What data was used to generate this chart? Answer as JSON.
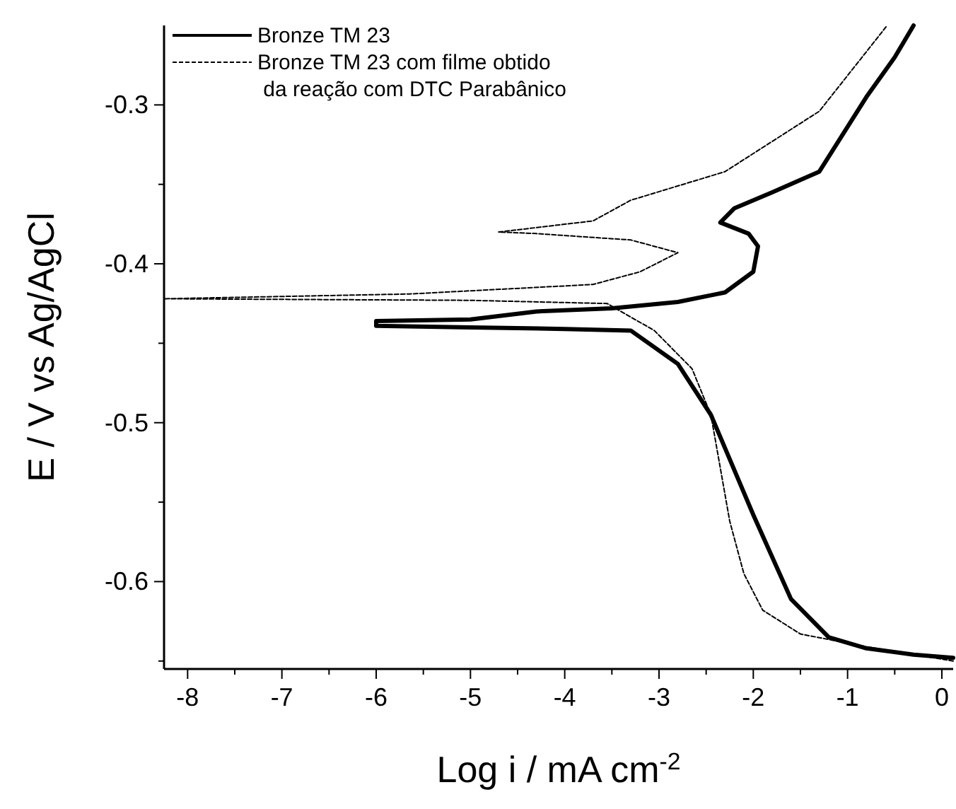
{
  "chart_data": {
    "type": "line",
    "xlabel": "Log i / mA cm$^{-2}$",
    "ylabel": "E / V  vs  Ag/AgCl",
    "xlim": [
      -8.25,
      0.12
    ],
    "ylim": [
      -0.655,
      -0.25
    ],
    "xticks": [
      -8,
      {
        "value": -7.5,
        "label": null
      },
      -7,
      {
        "value": -6.5,
        "label": null
      },
      -6,
      {
        "value": -5.5,
        "label": null
      },
      -5,
      {
        "value": -4.5,
        "label": null
      },
      -4,
      {
        "value": -3.5,
        "label": null
      },
      -3,
      {
        "value": -2.5,
        "label": null
      },
      -2,
      {
        "value": -1.5,
        "label": null
      },
      -1,
      {
        "value": -0.5,
        "label": null
      },
      0
    ],
    "yticks": [
      {
        "value": -0.65,
        "label": null
      },
      -0.6,
      {
        "value": -0.55,
        "label": null
      },
      -0.5,
      {
        "value": -0.45,
        "label": null
      },
      -0.4,
      {
        "value": -0.35,
        "label": null
      },
      -0.3
    ],
    "legend": "top left",
    "grid": false,
    "marker": "none",
    "series": [
      {
        "name": "Bronze TM 23",
        "color": "#000000",
        "line_style": "solid",
        "x": [
          0.12,
          -0.3,
          -0.8,
          -1.2,
          -1.6,
          -2.0,
          -2.45,
          -2.8,
          -3.3,
          -4.0,
          -5.0,
          -6.0,
          -6.0,
          -5.0,
          -4.3,
          -3.5,
          -2.8,
          -2.3,
          -2.0,
          -1.95,
          -2.05,
          -2.35,
          -2.2,
          -1.8,
          -1.3,
          -0.8,
          -0.5,
          -0.3
        ],
        "values": [
          -0.648,
          -0.646,
          -0.642,
          -0.635,
          -0.611,
          -0.558,
          -0.495,
          -0.463,
          -0.442,
          -0.441,
          -0.44,
          -0.439,
          -0.436,
          -0.435,
          -0.43,
          -0.428,
          -0.424,
          -0.418,
          -0.405,
          -0.389,
          -0.381,
          -0.374,
          -0.365,
          -0.355,
          -0.342,
          -0.295,
          -0.27,
          -0.25
        ]
      },
      {
        "name": "Bronze TM 23 com filme obtido\n da reação com DTC Parabânico",
        "color": "#000000",
        "line_style": "dashed",
        "x": [
          0.12,
          -0.8,
          -1.5,
          -1.9,
          -2.1,
          -2.25,
          -2.45,
          -2.65,
          -3.05,
          -3.55,
          -5.0,
          -8.25,
          -5.65,
          -3.7,
          -3.2,
          -2.8,
          -3.3,
          -4.3,
          -4.7,
          -3.7,
          -3.3,
          -2.3,
          -1.3,
          -0.58
        ],
        "values": [
          -0.65,
          -0.641,
          -0.633,
          -0.618,
          -0.595,
          -0.562,
          -0.495,
          -0.466,
          -0.442,
          -0.425,
          -0.423,
          -0.422,
          -0.419,
          -0.413,
          -0.405,
          -0.393,
          -0.385,
          -0.381,
          -0.38,
          -0.373,
          -0.36,
          -0.342,
          -0.304,
          -0.25
        ]
      }
    ]
  }
}
